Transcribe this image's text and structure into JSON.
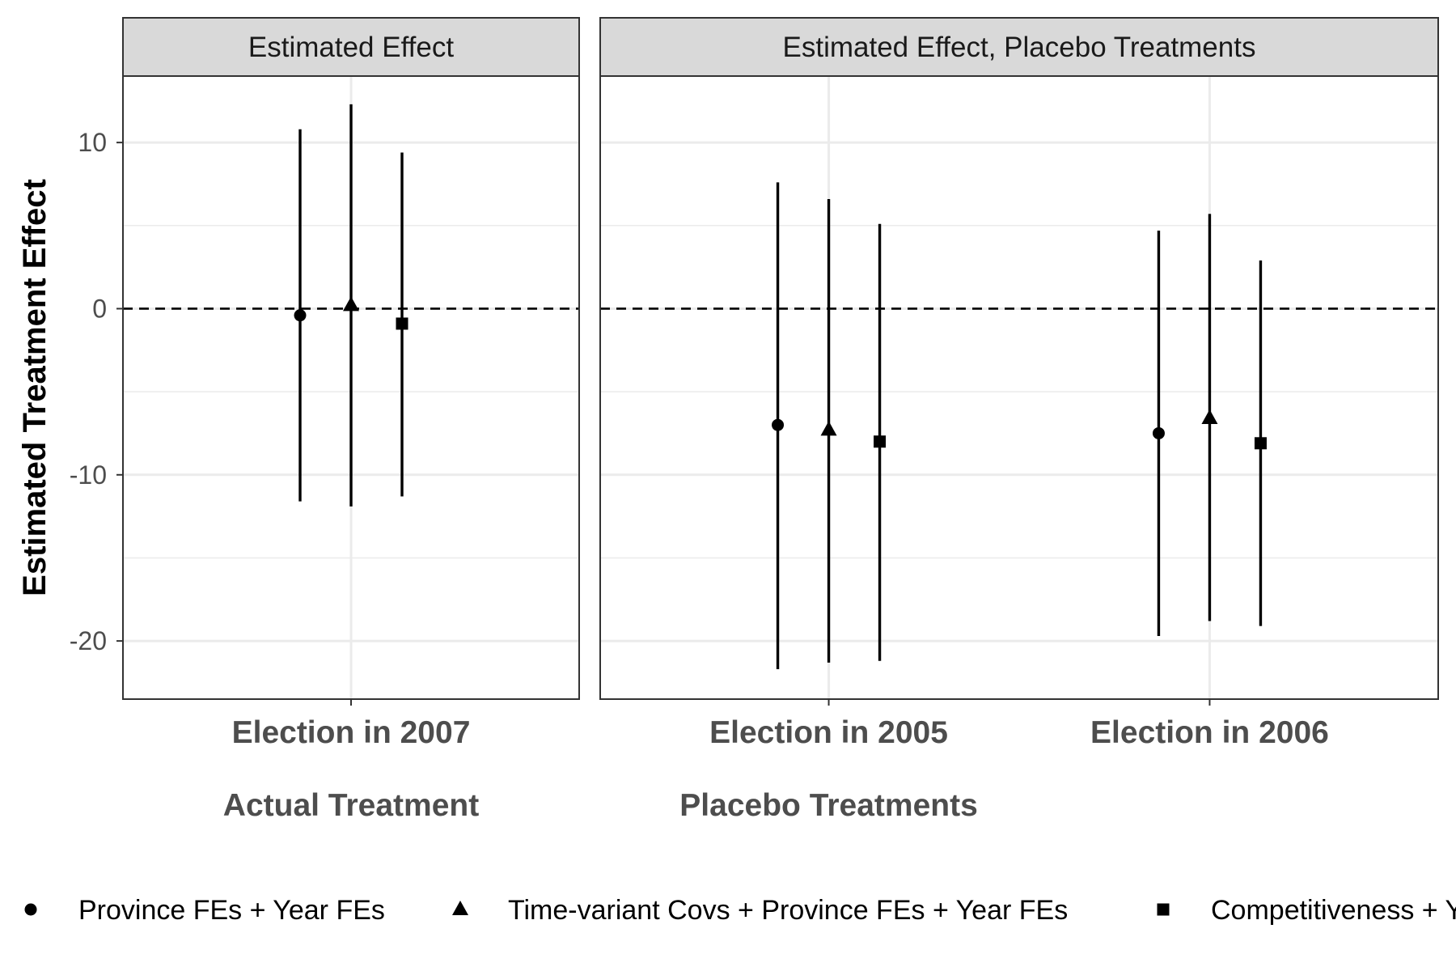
{
  "chart_data": {
    "type": "scatter",
    "ylabel": "Estimated Treatment Effect",
    "ylim": [
      -23.5,
      14
    ],
    "y_ticks": [
      -20,
      -10,
      0,
      10
    ],
    "y_tick_labels": [
      "-20",
      "-10",
      "0",
      "10"
    ],
    "reference_line": 0,
    "grid": true,
    "legend_position": "bottom",
    "panels": [
      {
        "strip_title": "Estimated Effect",
        "group_label": "Actual Treatment",
        "categories": [
          "Election in 2007"
        ]
      },
      {
        "strip_title": "Estimated Effect, Placebo Treatments",
        "group_label": "Placebo Treatments",
        "categories": [
          "Election in 2005",
          "Election in 2006"
        ]
      }
    ],
    "series": [
      {
        "name": "Province FEs + Year FEs",
        "marker": "circle",
        "points": [
          {
            "panel": 0,
            "category": "Election in 2007",
            "y": -0.4,
            "lower": -11.6,
            "upper": 10.8
          },
          {
            "panel": 1,
            "category": "Election in 2005",
            "y": -7.0,
            "lower": -21.7,
            "upper": 7.6
          },
          {
            "panel": 1,
            "category": "Election in 2006",
            "y": -7.5,
            "lower": -19.7,
            "upper": 4.7
          }
        ]
      },
      {
        "name": "Time-variant Covs + Province FEs + Year FEs",
        "marker": "triangle",
        "points": [
          {
            "panel": 0,
            "category": "Election in 2007",
            "y": 0.2,
            "lower": -11.9,
            "upper": 12.3
          },
          {
            "panel": 1,
            "category": "Election in 2005",
            "y": -7.3,
            "lower": -21.3,
            "upper": 6.6
          },
          {
            "panel": 1,
            "category": "Election in 2006",
            "y": -6.6,
            "lower": -18.8,
            "upper": 5.7
          }
        ]
      },
      {
        "name": "Competitiveness + Y",
        "marker": "square",
        "points": [
          {
            "panel": 0,
            "category": "Election in 2007",
            "y": -0.9,
            "lower": -11.3,
            "upper": 9.4
          },
          {
            "panel": 1,
            "category": "Election in 2005",
            "y": -8.0,
            "lower": -21.2,
            "upper": 5.1
          },
          {
            "panel": 1,
            "category": "Election in 2006",
            "y": -8.1,
            "lower": -19.1,
            "upper": 2.9
          }
        ]
      }
    ]
  }
}
